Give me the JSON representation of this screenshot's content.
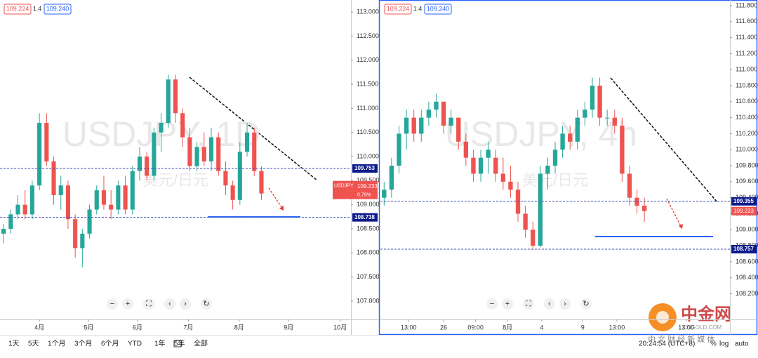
{
  "quote": {
    "bid": "109.224",
    "spread": "1.4",
    "ask": "109.240"
  },
  "toolbar": {
    "ranges": [
      "1天",
      "5天",
      "1个月",
      "3个月",
      "6个月",
      "YTD",
      "1年",
      "5年",
      "全部"
    ],
    "time": "20:24:54 (UTC+8)",
    "percent": "%",
    "log": "log",
    "auto": "auto"
  },
  "logo": {
    "name": "中金网",
    "site": "CNGOLD.COM",
    "slogan": "中 文 财 经 新 媒 体"
  },
  "chart_data": [
    {
      "type": "candlestick",
      "watermark": "USDJPY, 1D",
      "watermark2": "美元/日元",
      "symbol": "USDJPY",
      "change": "0.79%",
      "up_color": "#26a69a",
      "down_color": "#ef5350",
      "xlim": [
        0,
        49
      ],
      "ylim": [
        106.62,
        113.25
      ],
      "xticks": [
        {
          "value": 5.5,
          "label": "4月"
        },
        {
          "value": 12.4,
          "label": "5月"
        },
        {
          "value": 19.2,
          "label": "6月"
        },
        {
          "value": 26.3,
          "label": "7月"
        },
        {
          "value": 33.4,
          "label": "8月"
        },
        {
          "value": 40.3,
          "label": "9月"
        },
        {
          "value": 47.5,
          "label": "10月"
        }
      ],
      "yticks": [
        {
          "value": 107,
          "label": "107.000"
        },
        {
          "value": 107.5,
          "label": "107.500"
        },
        {
          "value": 108,
          "label": "108.000"
        },
        {
          "value": 108.5,
          "label": "108.500"
        },
        {
          "value": 109,
          "label": "109.000"
        },
        {
          "value": 109.5,
          "label": "109.500"
        },
        {
          "value": 110,
          "label": "110.000"
        },
        {
          "value": 110.5,
          "label": "110.500"
        },
        {
          "value": 111,
          "label": "111.000"
        },
        {
          "value": 111.5,
          "label": "111.500"
        },
        {
          "value": 112,
          "label": "112.000"
        },
        {
          "value": 112.5,
          "label": "112.500"
        },
        {
          "value": 113,
          "label": "113.000"
        }
      ],
      "levels": [
        {
          "value": 109.753,
          "label": "109.753"
        },
        {
          "value": 108.738,
          "label": "108.738"
        }
      ],
      "last": {
        "value": 109.233,
        "label": "109.233"
      },
      "open": [
        108.4,
        108.5,
        108.8,
        109.0,
        108.8,
        109.4,
        110.7,
        109.9,
        109.2,
        109.4,
        108.7,
        108.1,
        108.4,
        108.9,
        109.3,
        109.0,
        108.9,
        109.4,
        108.9,
        109.7,
        110.0,
        109.6,
        110.5,
        110.7,
        111.6,
        110.9,
        110.4,
        109.8,
        110.2,
        109.9,
        110.4,
        109.7,
        109.4,
        109.1,
        110.1,
        110.5,
        109.7
      ],
      "high": [
        108.6,
        108.9,
        109.2,
        109.3,
        109.5,
        110.9,
        110.9,
        110.0,
        109.6,
        109.5,
        108.8,
        108.5,
        109.0,
        109.4,
        109.6,
        109.3,
        109.5,
        109.6,
        109.8,
        110.2,
        110.1,
        110.6,
        110.9,
        111.7,
        111.7,
        111.0,
        110.6,
        110.3,
        110.5,
        110.6,
        110.5,
        109.9,
        109.5,
        110.3,
        110.7,
        110.6,
        109.8
      ],
      "low": [
        108.2,
        108.4,
        108.7,
        108.7,
        108.7,
        109.3,
        109.8,
        109.0,
        108.9,
        108.5,
        107.9,
        107.7,
        108.3,
        108.8,
        108.9,
        108.7,
        108.8,
        108.8,
        108.8,
        109.5,
        109.5,
        109.5,
        110.1,
        110.6,
        110.7,
        110.2,
        109.7,
        109.7,
        109.8,
        109.7,
        109.6,
        109.2,
        108.9,
        109.0,
        110.0,
        109.6,
        109.1
      ],
      "close": [
        108.5,
        108.8,
        109.0,
        108.8,
        109.4,
        110.7,
        109.9,
        109.2,
        109.4,
        108.7,
        108.1,
        108.4,
        108.9,
        109.3,
        109.0,
        108.9,
        109.4,
        108.9,
        109.7,
        110.0,
        109.6,
        110.5,
        110.7,
        111.6,
        110.9,
        110.4,
        109.8,
        110.2,
        109.9,
        110.4,
        109.7,
        109.4,
        109.1,
        110.1,
        110.5,
        109.7,
        109.233
      ]
    },
    {
      "type": "candlestick",
      "watermark": "USDJPY, 4h",
      "watermark2": "美元/日元",
      "up_color": "#26a69a",
      "down_color": "#ef5350",
      "xlim": [
        0,
        47
      ],
      "ylim": [
        107.88,
        111.87
      ],
      "xticks": [
        {
          "value": 3.8,
          "label": "13:00"
        },
        {
          "value": 8.5,
          "label": "26"
        },
        {
          "value": 12.8,
          "label": "09:00"
        },
        {
          "value": 17.1,
          "label": "8月"
        },
        {
          "value": 21.7,
          "label": "4"
        },
        {
          "value": 27.2,
          "label": "9"
        },
        {
          "value": 31.8,
          "label": "13:00"
        },
        {
          "value": 41.1,
          "label": "13:00"
        }
      ],
      "yticks": [
        {
          "value": 108.2,
          "label": "108.200"
        },
        {
          "value": 108.4,
          "label": "108.400"
        },
        {
          "value": 108.6,
          "label": "108.600"
        },
        {
          "value": 108.8,
          "label": "108.800"
        },
        {
          "value": 109,
          "label": "109.000"
        },
        {
          "value": 109.2,
          "label": "109.200"
        },
        {
          "value": 109.4,
          "label": "109.400"
        },
        {
          "value": 109.6,
          "label": "109.600"
        },
        {
          "value": 109.8,
          "label": "109.800"
        },
        {
          "value": 110,
          "label": "110.000"
        },
        {
          "value": 110.2,
          "label": "110.200"
        },
        {
          "value": 110.4,
          "label": "110.400"
        },
        {
          "value": 110.6,
          "label": "110.600"
        },
        {
          "value": 110.8,
          "label": "110.800"
        },
        {
          "value": 111,
          "label": "111.000"
        },
        {
          "value": 111.2,
          "label": "111.200"
        },
        {
          "value": 111.4,
          "label": "111.400"
        },
        {
          "value": 111.6,
          "label": "111.600"
        },
        {
          "value": 111.8,
          "label": "111.800"
        }
      ],
      "levels": [
        {
          "value": 109.355,
          "label": "109.355"
        },
        {
          "value": 108.757,
          "label": "108.757"
        }
      ],
      "last": {
        "value": 109.233,
        "label": "109.233"
      },
      "open": [
        109.4,
        109.5,
        109.8,
        110.2,
        110.4,
        110.2,
        110.4,
        110.5,
        110.6,
        110.3,
        110.4,
        110.1,
        109.9,
        109.7,
        109.9,
        109.9,
        109.7,
        109.6,
        109.5,
        109.2,
        109.0,
        108.8,
        109.7,
        109.8,
        110.0,
        110.2,
        110.1,
        110.4,
        110.5,
        110.8,
        110.4,
        110.4,
        110.3,
        109.7,
        109.4,
        109.3
      ],
      "high": [
        109.6,
        109.9,
        110.3,
        110.5,
        110.5,
        110.5,
        110.6,
        110.7,
        110.6,
        110.5,
        110.4,
        110.2,
        110.0,
        110.0,
        110.1,
        110.0,
        109.9,
        109.8,
        109.6,
        109.3,
        109.1,
        109.8,
        109.9,
        110.1,
        110.3,
        110.3,
        110.5,
        110.6,
        110.9,
        110.9,
        110.5,
        110.5,
        110.4,
        109.8,
        109.5,
        109.4
      ],
      "low": [
        109.3,
        109.4,
        109.7,
        110.0,
        110.1,
        110.1,
        110.3,
        110.4,
        110.2,
        110.2,
        110.0,
        109.8,
        109.6,
        109.6,
        109.7,
        109.6,
        109.5,
        109.4,
        109.1,
        108.9,
        108.75,
        108.78,
        109.5,
        109.7,
        109.9,
        110.0,
        110.0,
        110.3,
        110.4,
        110.3,
        110.3,
        110.2,
        109.6,
        109.3,
        109.2,
        109.1
      ],
      "close": [
        109.5,
        109.8,
        110.2,
        110.4,
        110.2,
        110.4,
        110.5,
        110.6,
        110.3,
        110.4,
        110.1,
        109.9,
        109.7,
        109.9,
        110.0,
        109.7,
        109.6,
        109.5,
        109.2,
        109.0,
        108.8,
        109.7,
        109.8,
        110.0,
        110.2,
        110.1,
        110.4,
        110.5,
        110.8,
        110.4,
        110.4,
        110.3,
        109.7,
        109.4,
        109.3,
        109.233
      ]
    }
  ]
}
